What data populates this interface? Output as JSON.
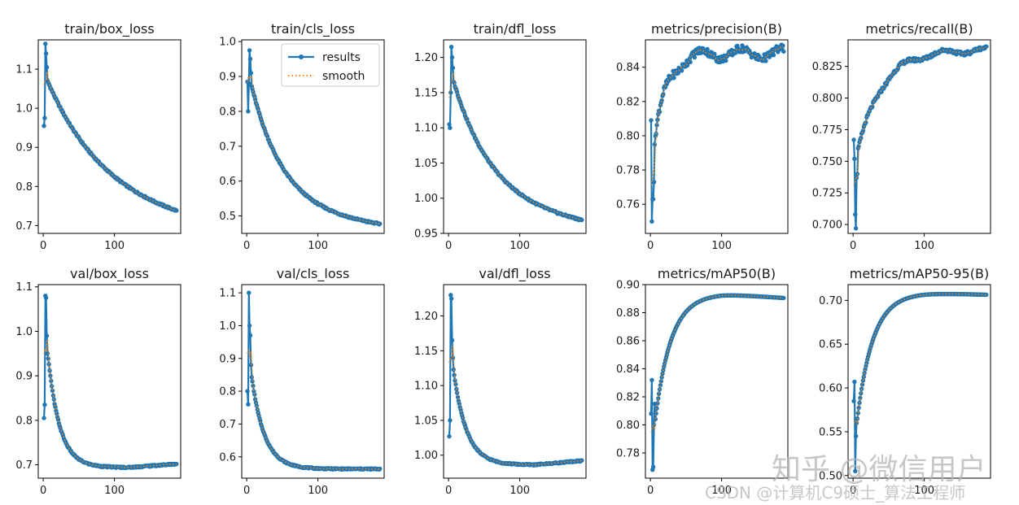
{
  "colors": {
    "results": "#1f77b4",
    "smooth": "#ff7f0e",
    "axis": "#000000",
    "background": "#ffffff"
  },
  "watermarks": {
    "zhihu": "知乎 @微信用户",
    "csdn": "CSDN @计算机C9硕士_算法工程师"
  },
  "chart_data": [
    {
      "type": "line",
      "title": "train/box_loss",
      "xlim": [
        -7,
        193
      ],
      "ylim": [
        0.68,
        1.175
      ],
      "xticks": [
        0,
        100
      ],
      "yticks": [
        0.7,
        0.8,
        0.9,
        1.0,
        1.1
      ],
      "decimals": 1,
      "curve": "decay",
      "params": {
        "start": 1.07,
        "end": 0.7,
        "k": 0.012,
        "lin": 0.09
      },
      "spikes": [
        [
          1,
          0.955
        ],
        [
          2,
          0.975
        ],
        [
          3,
          1.165
        ],
        [
          4,
          1.14
        ],
        [
          5,
          1.105
        ],
        [
          6,
          1.07
        ]
      ],
      "series": [
        {
          "name": "results"
        },
        {
          "name": "smooth"
        }
      ],
      "legend": null
    },
    {
      "type": "line",
      "title": "train/cls_loss",
      "xlim": [
        -7,
        193
      ],
      "ylim": [
        0.45,
        1.005
      ],
      "xticks": [
        0,
        100
      ],
      "yticks": [
        0.5,
        0.6,
        0.7,
        0.8,
        0.9,
        1.0
      ],
      "decimals": 1,
      "curve": "decay",
      "params": {
        "start": 0.88,
        "end": 0.47,
        "k": 0.022,
        "lin": 0.09
      },
      "spikes": [
        [
          1,
          0.885
        ],
        [
          2,
          0.8
        ],
        [
          3,
          0.88
        ],
        [
          4,
          0.975
        ],
        [
          5,
          0.95
        ],
        [
          6,
          0.91
        ]
      ],
      "series": [
        {
          "name": "results"
        },
        {
          "name": "smooth"
        }
      ],
      "legend": "top-right"
    },
    {
      "type": "line",
      "title": "train/dfl_loss",
      "xlim": [
        -7,
        193
      ],
      "ylim": [
        0.95,
        1.225
      ],
      "xticks": [
        0,
        100
      ],
      "yticks": [
        0.95,
        1.0,
        1.05,
        1.1,
        1.15,
        1.2
      ],
      "decimals": 2,
      "curve": "decay",
      "params": {
        "start": 1.17,
        "end": 0.962,
        "k": 0.018,
        "lin": 0.1
      },
      "spikes": [
        [
          1,
          1.105
        ],
        [
          2,
          1.1
        ],
        [
          3,
          1.15
        ],
        [
          4,
          1.215
        ],
        [
          5,
          1.2
        ],
        [
          6,
          1.185
        ]
      ],
      "series": [
        {
          "name": "results"
        },
        {
          "name": "smooth"
        }
      ],
      "legend": null
    },
    {
      "type": "line",
      "title": "metrics/precision(B)",
      "xlim": [
        -7,
        193
      ],
      "ylim": [
        0.743,
        0.856
      ],
      "xticks": [
        0,
        100
      ],
      "yticks": [
        0.76,
        0.78,
        0.8,
        0.82,
        0.84
      ],
      "decimals": 2,
      "curve": "rise",
      "params": {
        "start": 0.795,
        "end": 0.848,
        "k": 0.06,
        "wobble": 0.003
      },
      "spikes": [
        [
          1,
          0.809
        ],
        [
          2,
          0.75
        ],
        [
          3,
          0.763
        ],
        [
          4,
          0.763
        ],
        [
          5,
          0.773
        ],
        [
          6,
          0.795
        ]
      ],
      "series": [
        {
          "name": "results"
        },
        {
          "name": "smooth"
        }
      ],
      "legend": null
    },
    {
      "type": "line",
      "title": "metrics/recall(B)",
      "xlim": [
        -7,
        193
      ],
      "ylim": [
        0.693,
        0.846
      ],
      "xticks": [
        0,
        100
      ],
      "yticks": [
        0.7,
        0.725,
        0.75,
        0.775,
        0.8,
        0.825
      ],
      "decimals": 3,
      "curve": "rise",
      "params": {
        "start": 0.755,
        "end": 0.838,
        "k": 0.03,
        "wobble": 0.002
      },
      "spikes": [
        [
          1,
          0.767
        ],
        [
          2,
          0.752
        ],
        [
          3,
          0.708
        ],
        [
          4,
          0.697
        ],
        [
          5,
          0.737
        ],
        [
          6,
          0.74
        ]
      ],
      "series": [
        {
          "name": "results"
        },
        {
          "name": "smooth"
        }
      ],
      "legend": null
    },
    {
      "type": "line",
      "title": "val/box_loss",
      "xlim": [
        -7,
        193
      ],
      "ylim": [
        0.67,
        1.105
      ],
      "xticks": [
        0,
        100
      ],
      "yticks": [
        0.7,
        0.8,
        0.9,
        1.0,
        1.1
      ],
      "decimals": 1,
      "curve": "decay",
      "params": {
        "start": 0.955,
        "end": 0.694,
        "k": 0.06,
        "lin": 0.0,
        "tail": 0.008
      },
      "spikes": [
        [
          1,
          0.805
        ],
        [
          2,
          0.835
        ],
        [
          3,
          1.08
        ],
        [
          4,
          1.075
        ],
        [
          5,
          0.99
        ],
        [
          6,
          0.95
        ]
      ],
      "series": [
        {
          "name": "results"
        },
        {
          "name": "smooth"
        }
      ],
      "legend": null
    },
    {
      "type": "line",
      "title": "val/cls_loss",
      "xlim": [
        -7,
        193
      ],
      "ylim": [
        0.535,
        1.125
      ],
      "xticks": [
        0,
        100
      ],
      "yticks": [
        0.6,
        0.7,
        0.8,
        0.9,
        1.0,
        1.1
      ],
      "decimals": 1,
      "curve": "decay",
      "params": {
        "start": 0.86,
        "end": 0.563,
        "k": 0.055,
        "lin": 0.0,
        "tail": 0.0
      },
      "spikes": [
        [
          1,
          0.8
        ],
        [
          2,
          0.76
        ],
        [
          3,
          1.1
        ],
        [
          4,
          1.0
        ],
        [
          5,
          0.97
        ],
        [
          6,
          0.88
        ]
      ],
      "series": [
        {
          "name": "results"
        },
        {
          "name": "smooth"
        }
      ],
      "legend": null
    },
    {
      "type": "line",
      "title": "val/dfl_loss",
      "xlim": [
        -7,
        193
      ],
      "ylim": [
        0.967,
        1.245
      ],
      "xticks": [
        0,
        100
      ],
      "yticks": [
        1.0,
        1.05,
        1.1,
        1.15,
        1.2
      ],
      "decimals": 2,
      "curve": "decay",
      "params": {
        "start": 1.13,
        "end": 0.986,
        "k": 0.055,
        "lin": 0.0,
        "tail": 0.006
      },
      "spikes": [
        [
          1,
          1.027
        ],
        [
          2,
          1.05
        ],
        [
          3,
          1.23
        ],
        [
          4,
          1.225
        ],
        [
          5,
          1.165
        ],
        [
          6,
          1.14
        ]
      ],
      "series": [
        {
          "name": "results"
        },
        {
          "name": "smooth"
        }
      ],
      "legend": null
    },
    {
      "type": "line",
      "title": "metrics/mAP50(B)",
      "xlim": [
        -7,
        193
      ],
      "ylim": [
        0.762,
        0.9
      ],
      "xticks": [
        0,
        100
      ],
      "yticks": [
        0.78,
        0.8,
        0.82,
        0.84,
        0.86,
        0.88,
        0.9
      ],
      "decimals": 2,
      "curve": "rise",
      "params": {
        "start": 0.8,
        "end": 0.8935,
        "k": 0.045,
        "wobble": 0.0,
        "droop": 0.003
      },
      "spikes": [
        [
          1,
          0.808
        ],
        [
          2,
          0.832
        ],
        [
          3,
          0.768
        ],
        [
          4,
          0.77
        ],
        [
          5,
          0.8
        ],
        [
          6,
          0.815
        ]
      ],
      "series": [
        {
          "name": "results"
        },
        {
          "name": "smooth"
        }
      ],
      "legend": null
    },
    {
      "type": "line",
      "title": "metrics/mAP50-95(B)",
      "xlim": [
        -7,
        193
      ],
      "ylim": [
        0.497,
        0.718
      ],
      "xticks": [
        0,
        100
      ],
      "yticks": [
        0.5,
        0.55,
        0.6,
        0.65,
        0.7
      ],
      "decimals": 2,
      "curve": "rise",
      "params": {
        "start": 0.565,
        "end": 0.7085,
        "k": 0.045,
        "wobble": 0.0,
        "droop": 0.002
      },
      "spikes": [
        [
          1,
          0.585
        ],
        [
          2,
          0.607
        ],
        [
          3,
          0.505
        ],
        [
          4,
          0.545
        ],
        [
          5,
          0.56
        ],
        [
          6,
          0.565
        ]
      ],
      "series": [
        {
          "name": "results"
        },
        {
          "name": "smooth"
        }
      ],
      "legend": null
    }
  ]
}
